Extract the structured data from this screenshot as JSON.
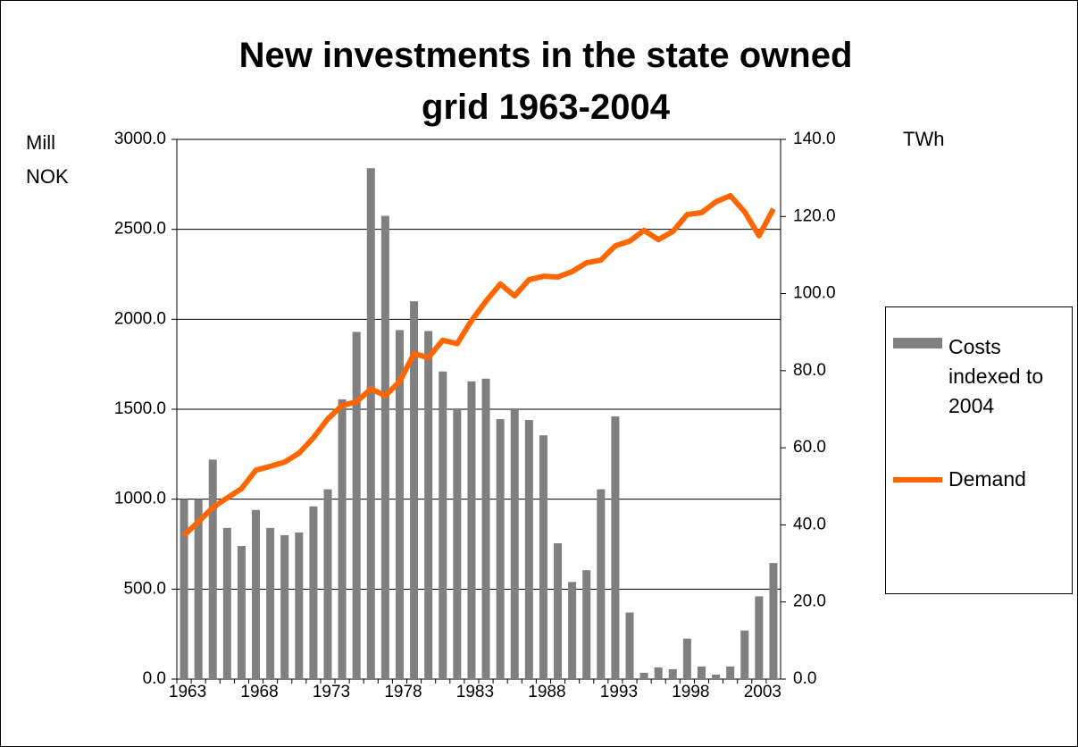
{
  "chart_data": {
    "type": "bar",
    "title": "New investments in the state owned grid 1963-2004",
    "ylabel": "Mill NOK",
    "y2label": "TWh",
    "categories": [
      "1963",
      null,
      null,
      null,
      null,
      "1968",
      null,
      null,
      null,
      null,
      "1973",
      null,
      null,
      null,
      null,
      "1978",
      null,
      null,
      null,
      null,
      "1983",
      null,
      null,
      null,
      null,
      "1988",
      null,
      null,
      null,
      null,
      "1993",
      null,
      null,
      null,
      null,
      "1998",
      null,
      null,
      null,
      null,
      "2003",
      null
    ],
    "series": [
      {
        "name": "Costs indexed to 2004",
        "type": "bar",
        "color": "#808080",
        "values": [
          1000,
          1000,
          1220,
          840,
          740,
          940,
          840,
          800,
          815,
          960,
          1055,
          1555,
          1930,
          2840,
          2575,
          1940,
          2100,
          1935,
          1710,
          1500,
          1655,
          1670,
          1445,
          1500,
          1440,
          1355,
          755,
          540,
          605,
          1055,
          1460,
          370,
          35,
          65,
          55,
          225,
          70,
          25,
          70,
          270,
          460,
          645
        ]
      },
      {
        "name": "Demand",
        "type": "line",
        "color": "#ff6600",
        "axis": "y2",
        "values": [
          37.3,
          40.8,
          44.5,
          47,
          49.4,
          54.2,
          55.2,
          56.3,
          58.6,
          62.6,
          67.5,
          71,
          71.9,
          75.3,
          73.5,
          77.2,
          84.4,
          83.4,
          87.9,
          87,
          93,
          98,
          102.5,
          99.4,
          103.6,
          104.5,
          104.3,
          105.7,
          108,
          108.7,
          112.4,
          113.6,
          116.4,
          114,
          116.1,
          120.5,
          121,
          123.8,
          125.4,
          121.2,
          115,
          122
        ]
      }
    ],
    "ylim": [
      0,
      3000
    ],
    "yticks": [
      {
        "value": 0,
        "label": "0.0"
      },
      {
        "value": 500,
        "label": "500.0"
      },
      {
        "value": 1000,
        "label": "1000.0"
      },
      {
        "value": 1500,
        "label": "1500.0"
      },
      {
        "value": 2000,
        "label": "2000.0"
      },
      {
        "value": 2500,
        "label": "2500.0"
      },
      {
        "value": 3000,
        "label": "3000.0"
      }
    ],
    "y2lim": [
      0,
      140
    ],
    "y2ticks": [
      {
        "value": 0,
        "label": "0.0"
      },
      {
        "value": 20,
        "label": "20.0"
      },
      {
        "value": 40,
        "label": "40.0"
      },
      {
        "value": 60,
        "label": "60.0"
      },
      {
        "value": 80,
        "label": "80.0"
      },
      {
        "value": 100,
        "label": "100.0"
      },
      {
        "value": 120,
        "label": "120.0"
      },
      {
        "value": 140,
        "label": "140.0"
      }
    ],
    "grid": true,
    "legend": "right"
  }
}
